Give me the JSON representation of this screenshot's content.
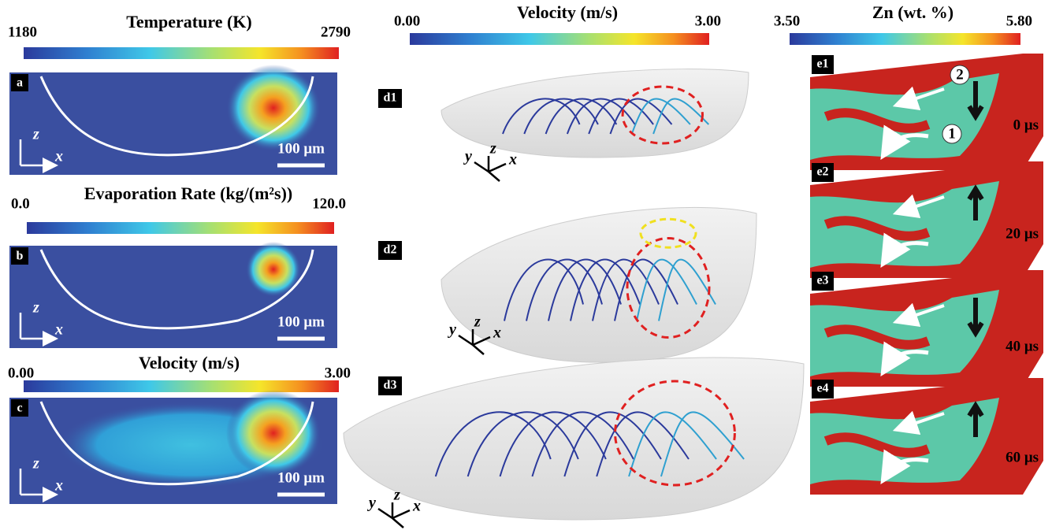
{
  "colorbars": [
    {
      "title": "Temperature (K)",
      "min": "1180",
      "max": "2790"
    },
    {
      "title": "Evaporation Rate (kg/(m²s))",
      "min": "0.0",
      "max": "120.0"
    },
    {
      "title": "Velocity (m/s)",
      "min": "0.00",
      "max": "3.00"
    },
    {
      "title": "Velocity (m/s)",
      "min": "0.00",
      "max": "3.00"
    },
    {
      "title": "Zn (wt. %)",
      "min": "3.50",
      "max": "5.80"
    }
  ],
  "left_panels": [
    {
      "label": "a",
      "axis_z": "z",
      "axis_x": "x",
      "scale": "100 μm"
    },
    {
      "label": "b",
      "axis_z": "z",
      "axis_x": "x",
      "scale": "100 μm"
    },
    {
      "label": "c",
      "axis_z": "z",
      "axis_x": "x",
      "scale": "100 μm"
    }
  ],
  "middle_panels": [
    {
      "label": "d1",
      "axis_y": "y",
      "axis_z": "z",
      "axis_x": "x"
    },
    {
      "label": "d2",
      "axis_y": "y",
      "axis_z": "z",
      "axis_x": "x"
    },
    {
      "label": "d3",
      "axis_y": "y",
      "axis_z": "z",
      "axis_x": "x"
    }
  ],
  "right_panels": [
    {
      "label": "e1",
      "time": "0 μs",
      "markers": [
        "1",
        "2"
      ]
    },
    {
      "label": "e2",
      "time": "20 μs"
    },
    {
      "label": "e3",
      "time": "40 μs"
    },
    {
      "label": "e4",
      "time": "60 μs"
    }
  ]
}
